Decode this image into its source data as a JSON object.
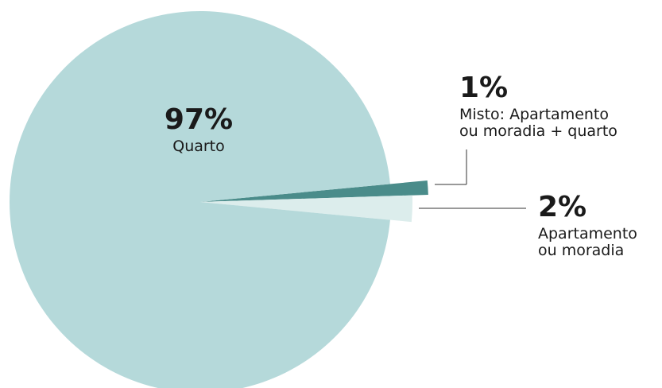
{
  "chart_data": {
    "type": "pie",
    "categories": [
      [
        "Quarto"
      ],
      [
        "Misto: Apartamento",
        "ou moradia + quarto"
      ],
      [
        "Apartamento",
        "ou moradia"
      ]
    ],
    "values": [
      97,
      1,
      2
    ],
    "value_labels": [
      "97%",
      "1%",
      "2%"
    ],
    "colors": [
      "#b5d9da",
      "#4a8c8a",
      "#dcedec"
    ]
  }
}
